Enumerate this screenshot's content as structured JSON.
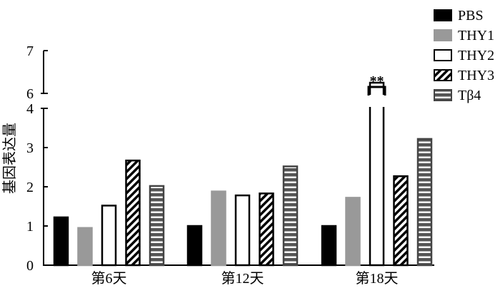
{
  "chart_data": {
    "type": "bar",
    "ylabel": "基因表达量",
    "categories": [
      "第6天",
      "第12天",
      "第18天"
    ],
    "y_axis": {
      "lower_segment": [
        0,
        4
      ],
      "upper_segment": [
        6,
        7
      ],
      "broken_between": [
        4,
        6
      ],
      "ticks": [
        "0",
        "1",
        "2",
        "3",
        "4",
        "6",
        "7"
      ]
    },
    "legend_position": "top-right",
    "series": [
      {
        "name": "PBS",
        "values": [
          1.22,
          1.0,
          1.0
        ],
        "color": "#000000",
        "pattern": "solid"
      },
      {
        "name": "THY1",
        "values": [
          0.95,
          1.88,
          1.72
        ],
        "color": "#999999",
        "pattern": "solid"
      },
      {
        "name": "THY2",
        "values": [
          1.52,
          1.78,
          6.25
        ],
        "color": "#ffffff",
        "pattern": "hollow"
      },
      {
        "name": "THY3",
        "values": [
          2.67,
          1.83,
          2.27
        ],
        "color": "#000000",
        "pattern": "diagonal-hatch"
      },
      {
        "name": "Tβ4",
        "values": [
          2.02,
          2.52,
          3.22
        ],
        "color": "#555555",
        "pattern": "horizontal-stripes"
      }
    ],
    "annotations": [
      {
        "text": "**",
        "category": "第18天",
        "series": "THY2"
      }
    ],
    "grid": false
  }
}
